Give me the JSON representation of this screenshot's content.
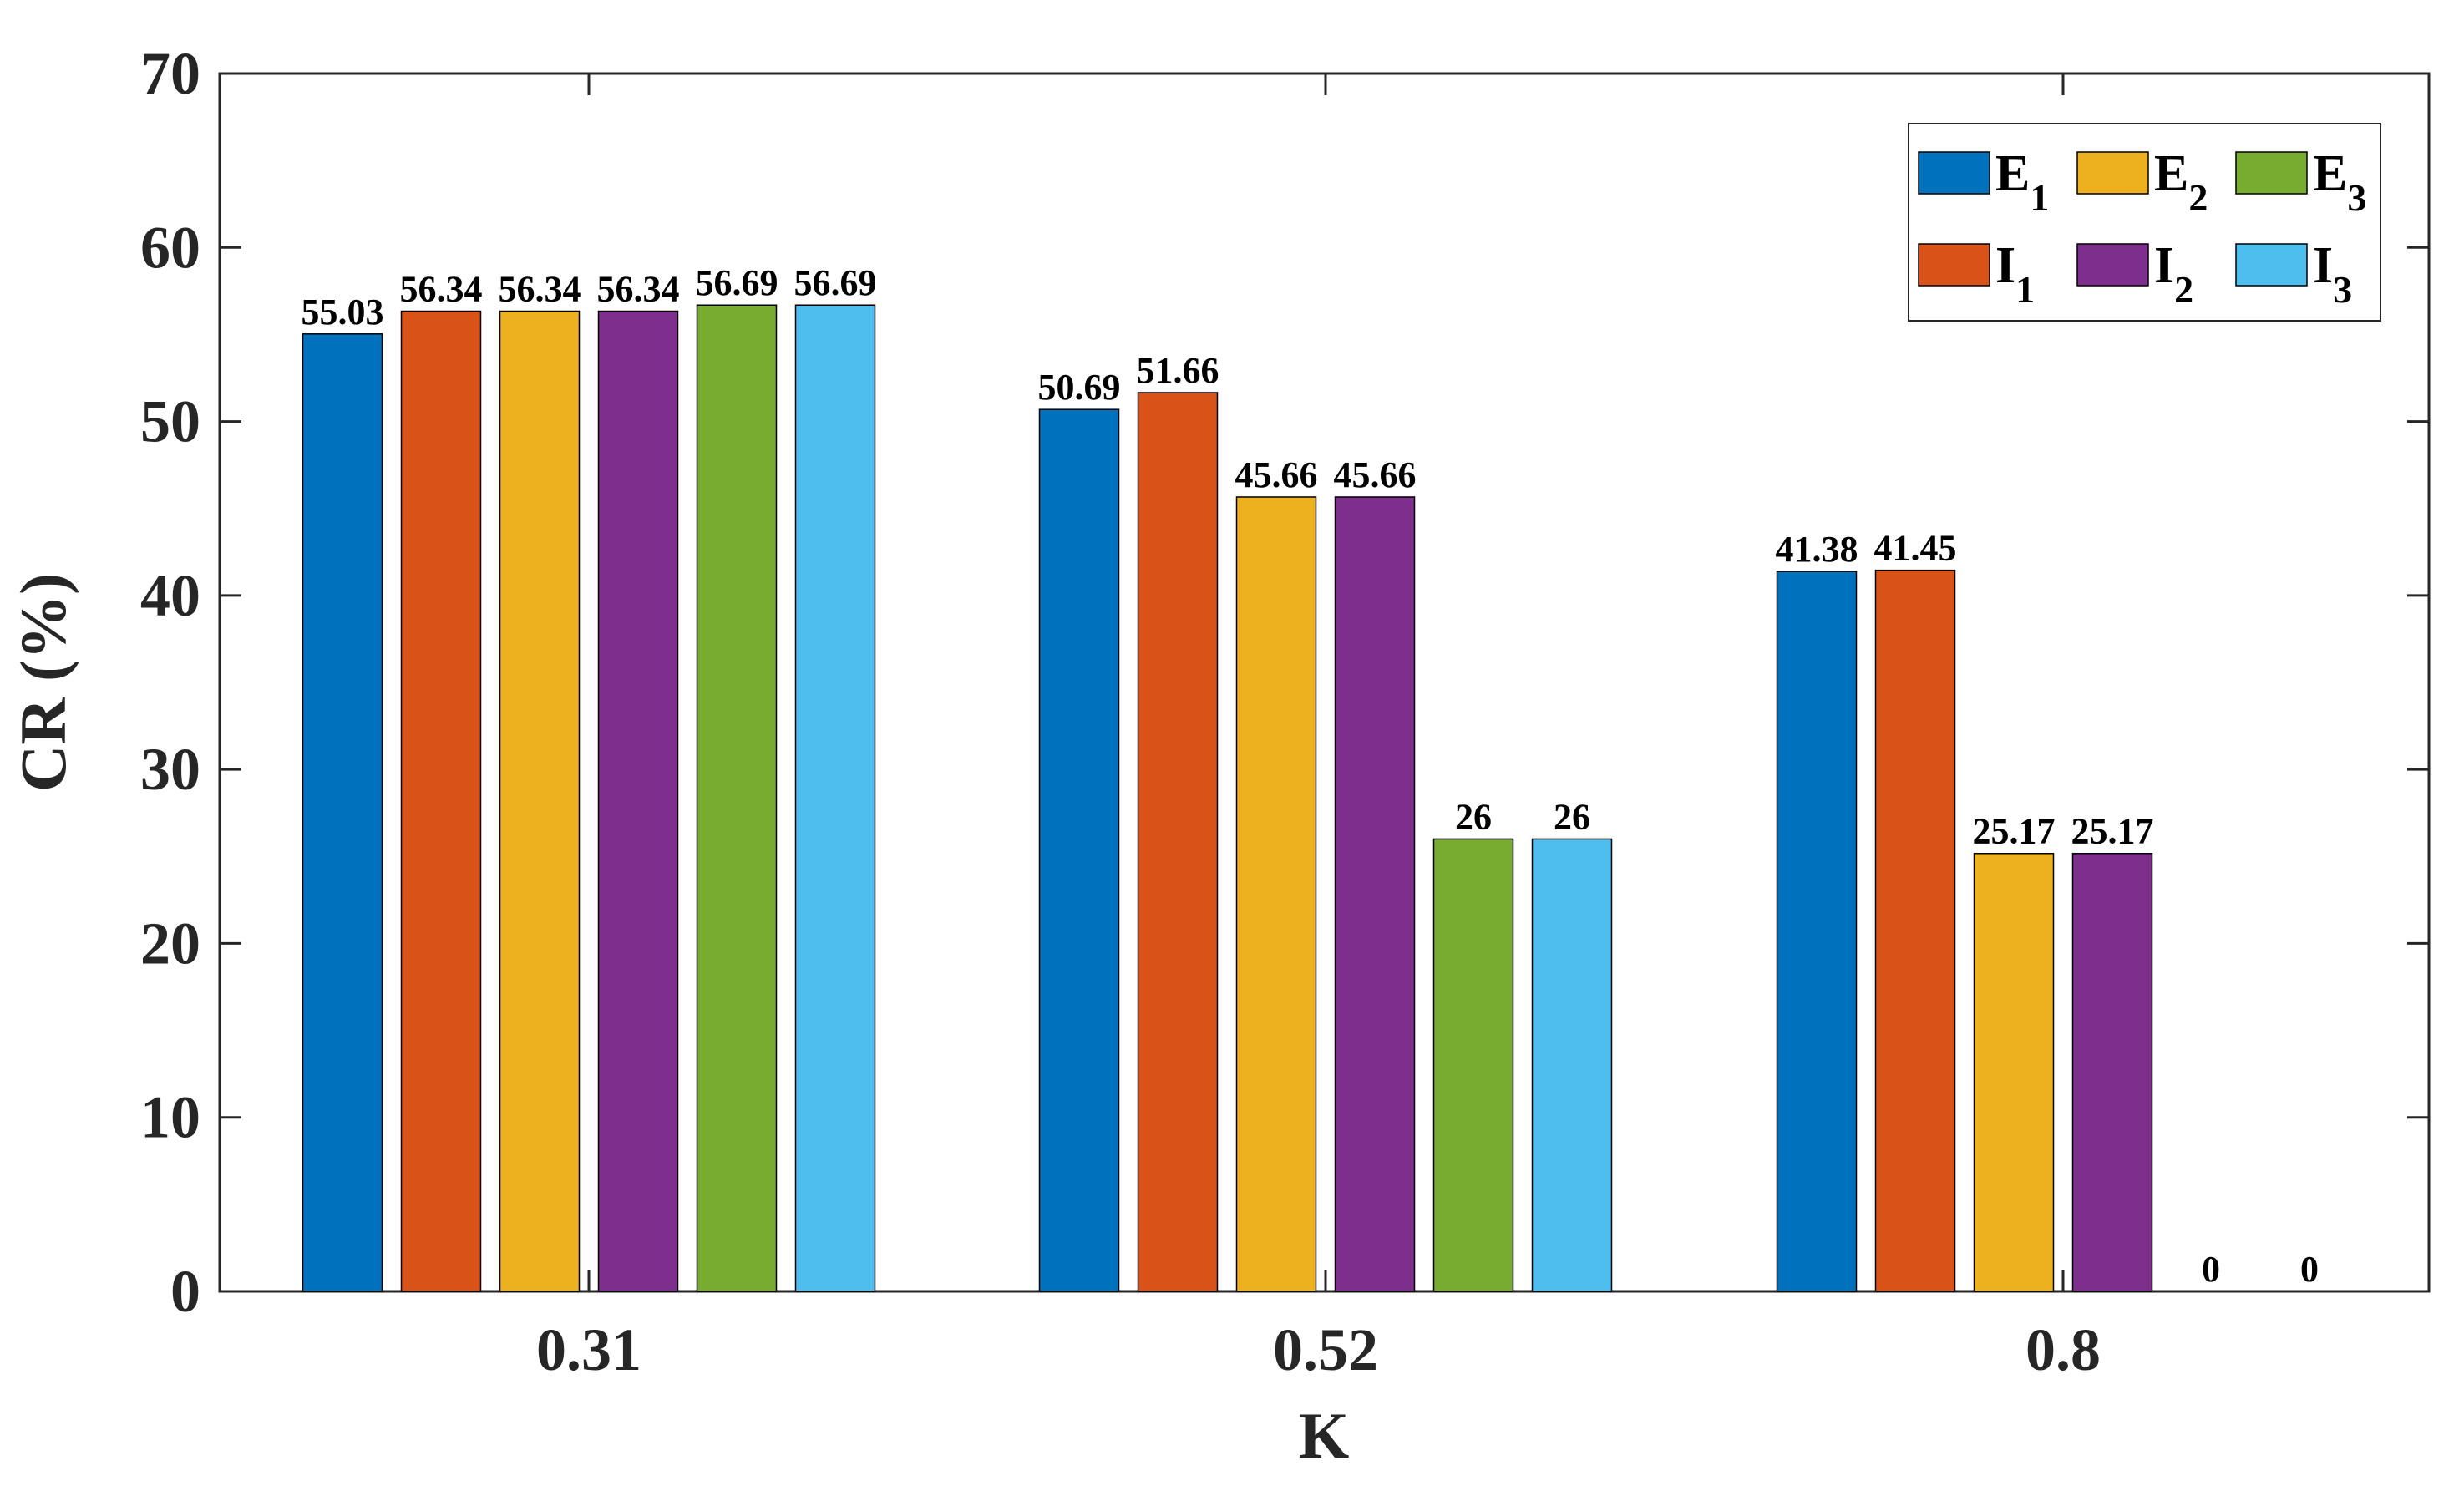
{
  "chart_data": {
    "type": "bar",
    "xlabel": "K",
    "ylabel": "CR (%)",
    "categories": [
      "0.31",
      "0.52",
      "0.8"
    ],
    "ylim": [
      0,
      70
    ],
    "yticks": [
      0,
      10,
      20,
      30,
      40,
      50,
      60,
      70
    ],
    "grid": false,
    "legend_position": "top-right",
    "series": [
      {
        "name": "E",
        "subscript": "1",
        "values": [
          55.03,
          50.69,
          41.38
        ],
        "labels": [
          "55.03",
          "50.69",
          "41.38"
        ],
        "color": "#0072BD"
      },
      {
        "name": "I",
        "subscript": "1",
        "values": [
          56.34,
          51.66,
          41.45
        ],
        "labels": [
          "56.34",
          "51.66",
          "41.45"
        ],
        "color": "#D95319"
      },
      {
        "name": "E",
        "subscript": "2",
        "values": [
          56.34,
          45.66,
          25.17
        ],
        "labels": [
          "56.34",
          "45.66",
          "25.17"
        ],
        "color": "#EDB120"
      },
      {
        "name": "I",
        "subscript": "2",
        "values": [
          56.34,
          45.66,
          25.17
        ],
        "labels": [
          "56.34",
          "45.66",
          "25.17"
        ],
        "color": "#7E2F8E"
      },
      {
        "name": "E",
        "subscript": "3",
        "values": [
          56.69,
          26,
          0
        ],
        "labels": [
          "56.69",
          "26",
          "0"
        ],
        "color": "#77AC30"
      },
      {
        "name": "I",
        "subscript": "3",
        "values": [
          56.69,
          26,
          0
        ],
        "labels": [
          "56.69",
          "26",
          "0"
        ],
        "color": "#4DBEEE"
      }
    ],
    "legend_order": [
      0,
      2,
      4,
      1,
      3,
      5
    ]
  }
}
